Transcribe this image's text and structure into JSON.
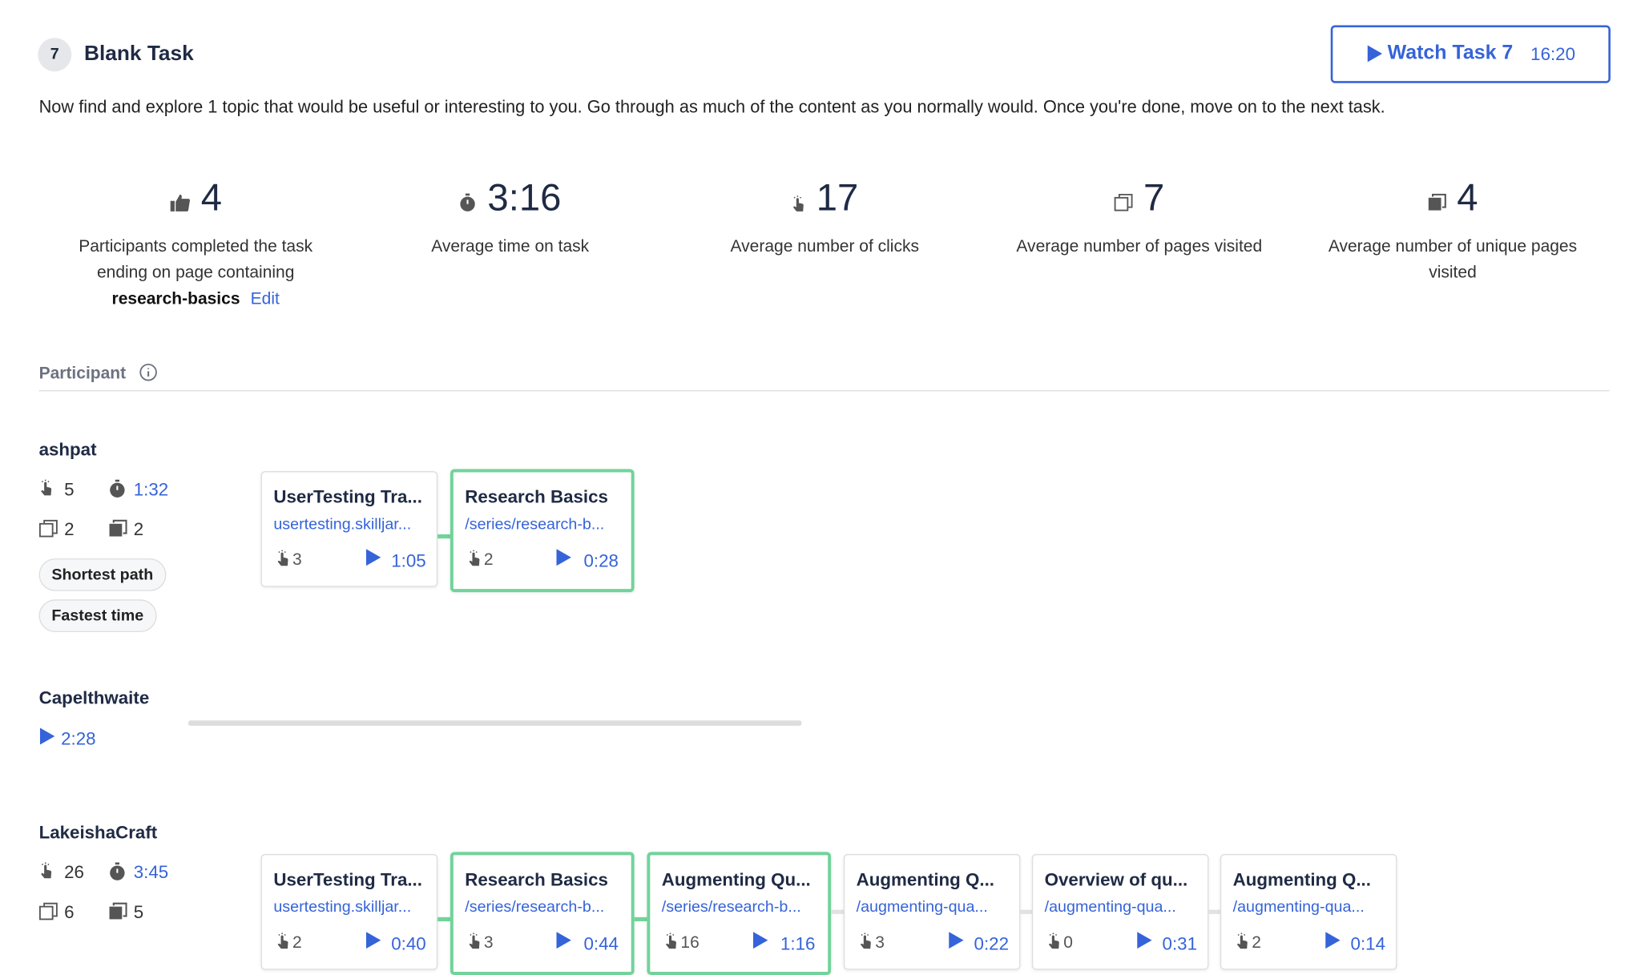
{
  "task": {
    "number": "7",
    "title": "Blank Task",
    "description": "Now find and explore 1 topic that would be useful or interesting to you. Go through as much of the content as you normally would. Once you're done, move on to the next task.",
    "watch_label": "Watch Task 7",
    "watch_duration": "16:20"
  },
  "stats": [
    {
      "value": "4",
      "label": "Participants completed the task ending on page containing",
      "page": "research-basics",
      "edit": "Edit"
    },
    {
      "value": "3:16",
      "label": "Average time on task"
    },
    {
      "value": "17",
      "label": "Average number of clicks"
    },
    {
      "value": "7",
      "label": "Average number of pages visited"
    },
    {
      "value": "4",
      "label": "Average number of unique pages visited"
    }
  ],
  "participant_header": "Participant",
  "participants": [
    {
      "name": "ashpat",
      "clicks": "5",
      "time": "1:32",
      "pages": "2",
      "unique_pages": "2",
      "badges": [
        "Shortest path",
        "Fastest time"
      ],
      "steps": [
        {
          "title": "UserTesting Tra...",
          "url": "usertesting.skilljar...",
          "clicks": "3",
          "time": "1:05",
          "success": false
        },
        {
          "title": "Research Basics",
          "url": "/series/research-b...",
          "clicks": "2",
          "time": "0:28",
          "success": true
        }
      ]
    },
    {
      "name": "Capelthwaite",
      "video": "2:28"
    },
    {
      "name": "LakeishaCraft",
      "clicks": "26",
      "time": "3:45",
      "pages": "6",
      "unique_pages": "5",
      "steps": [
        {
          "title": "UserTesting Tra...",
          "url": "usertesting.skilljar...",
          "clicks": "2",
          "time": "0:40",
          "success": false
        },
        {
          "title": "Research Basics",
          "url": "/series/research-b...",
          "clicks": "3",
          "time": "0:44",
          "success": true
        },
        {
          "title": "Augmenting Qu...",
          "url": "/series/research-b...",
          "clicks": "16",
          "time": "1:16",
          "success": true
        },
        {
          "title": "Augmenting Q...",
          "url": "/augmenting-qua...",
          "clicks": "3",
          "time": "0:22",
          "success": false
        },
        {
          "title": "Overview of qu...",
          "url": "/augmenting-qua...",
          "clicks": "0",
          "time": "0:31",
          "success": false
        },
        {
          "title": "Augmenting Q...",
          "url": "/augmenting-qua...",
          "clicks": "2",
          "time": "0:14",
          "success": false
        }
      ]
    }
  ]
}
